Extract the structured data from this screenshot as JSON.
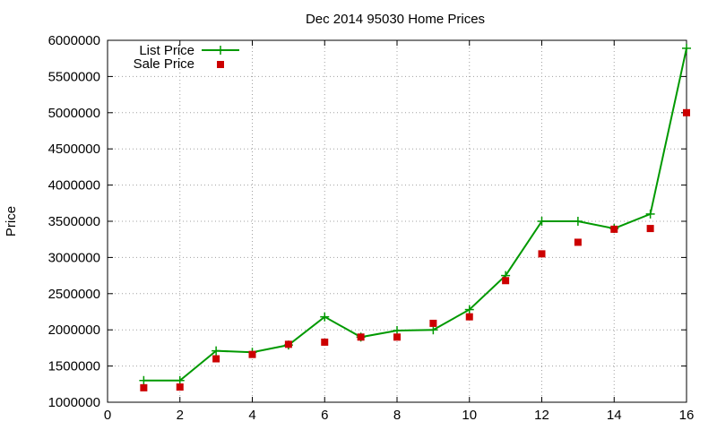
{
  "chart_data": {
    "type": "line",
    "title": "Dec 2014 95030 Home Prices",
    "xlabel": "",
    "ylabel": "Price",
    "xlim": [
      0,
      16
    ],
    "ylim": [
      1000000,
      6000000
    ],
    "xticks": [
      "0",
      "2",
      "4",
      "6",
      "8",
      "10",
      "12",
      "14",
      "16"
    ],
    "yticks": [
      "1000000",
      "1500000",
      "2000000",
      "2500000",
      "3000000",
      "3500000",
      "4000000",
      "4500000",
      "5000000",
      "5500000",
      "6000000"
    ],
    "grid": true,
    "legend_position": "top-left",
    "x": [
      1,
      2,
      3,
      4,
      5,
      6,
      7,
      8,
      9,
      10,
      11,
      12,
      13,
      14,
      15,
      16
    ],
    "series": [
      {
        "name": "List Price",
        "style": "line-with-plus-markers",
        "color": "#009900",
        "values": [
          1300000,
          1300000,
          1710000,
          1690000,
          1790000,
          2180000,
          1900000,
          1990000,
          2000000,
          2280000,
          2750000,
          3500000,
          3500000,
          3400000,
          3600000,
          5890000
        ]
      },
      {
        "name": "Sale Price",
        "style": "square-markers",
        "color": "#cc0000",
        "values": [
          1200000,
          1210000,
          1600000,
          1660000,
          1800000,
          1830000,
          1900000,
          1900000,
          2090000,
          2180000,
          2680000,
          3050000,
          3210000,
          3390000,
          3400000,
          5000000
        ]
      }
    ]
  }
}
